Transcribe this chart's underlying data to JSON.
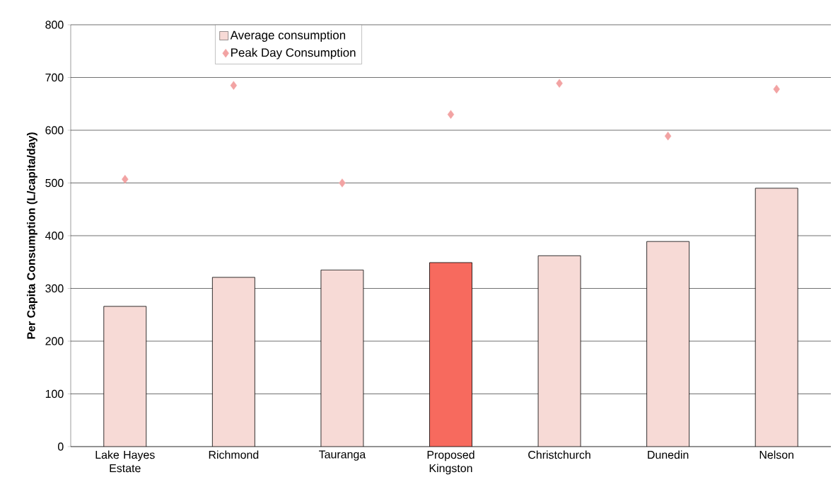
{
  "chart_data": {
    "type": "bar",
    "ylabel": "Per Capita Consumption (L/capita/day)",
    "categories": [
      "Lake Hayes Estate",
      "Richmond",
      "Tauranga",
      "Proposed Kingston",
      "Christchurch",
      "Dunedin",
      "Nelson"
    ],
    "series": [
      {
        "name": "Average consumption",
        "color": "#f7dad6",
        "colors": [
          "#f7dad6",
          "#f7dad6",
          "#f7dad6",
          "#f76a5e",
          "#f7dad6",
          "#f7dad6",
          "#f7dad6"
        ],
        "values": [
          266,
          321,
          335,
          349,
          362,
          389,
          490
        ]
      },
      {
        "name": "Peak Day Consumption",
        "type": "scatter",
        "color": "#f2a3a3",
        "marker": "diamond",
        "values": [
          507,
          685,
          500,
          630,
          689,
          589,
          678
        ]
      }
    ],
    "ylim": [
      0,
      800
    ],
    "yticks": [
      0,
      100,
      200,
      300,
      400,
      500,
      600,
      700,
      800
    ],
    "grid": "y",
    "legend": "top"
  }
}
